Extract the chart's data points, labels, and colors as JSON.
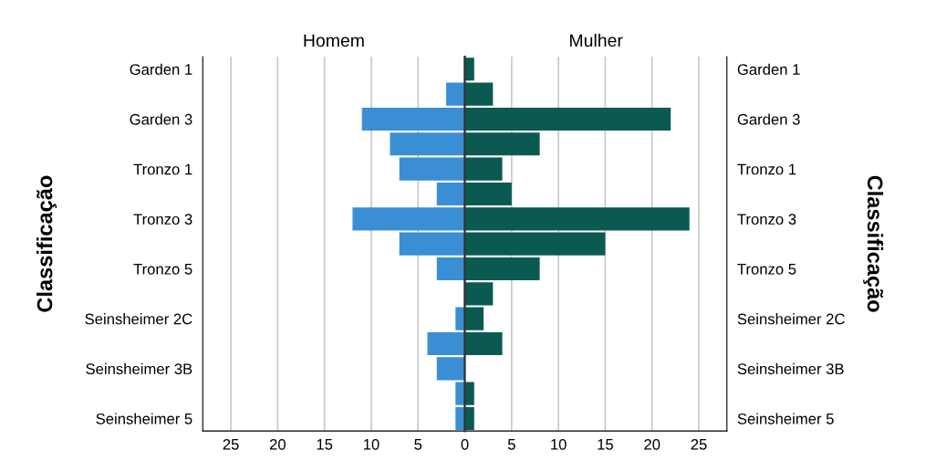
{
  "chart_data": [
    {
      "type": "bar",
      "orientation": "horizontal",
      "title": "Homem",
      "ylabel": "Classificação",
      "categories": [
        "Garden 1",
        null,
        "Garden 3",
        null,
        "Tronzo 1",
        null,
        "Tronzo 3",
        null,
        "Tronzo 5",
        null,
        "Seinsheimer 2C",
        null,
        "Seinsheimer 3B",
        null,
        "Seinsheimer 5"
      ],
      "values": [
        null,
        2,
        11,
        8,
        7,
        3,
        12,
        7,
        3,
        null,
        1,
        4,
        3,
        1,
        1
      ],
      "color": "#3a8fd4",
      "xlim": [
        28,
        0
      ],
      "xticks": [
        25,
        20,
        15,
        10,
        5
      ],
      "grid": "x"
    },
    {
      "type": "bar",
      "orientation": "horizontal",
      "title": "Mulher",
      "ylabel": "Classificação",
      "categories": [
        "Garden 1",
        null,
        "Garden 3",
        null,
        "Tronzo 1",
        null,
        "Tronzo 3",
        null,
        "Tronzo 5",
        null,
        "Seinsheimer 2C",
        null,
        "Seinsheimer 3B",
        null,
        "Seinsheimer 5"
      ],
      "values": [
        1,
        3,
        22,
        8,
        4,
        5,
        24,
        15,
        8,
        3,
        2,
        4,
        null,
        1,
        1
      ],
      "color": "#0b5a52",
      "xlim": [
        0,
        28
      ],
      "xticks": [
        0,
        5,
        10,
        15,
        20,
        25
      ],
      "grid": "x"
    }
  ]
}
